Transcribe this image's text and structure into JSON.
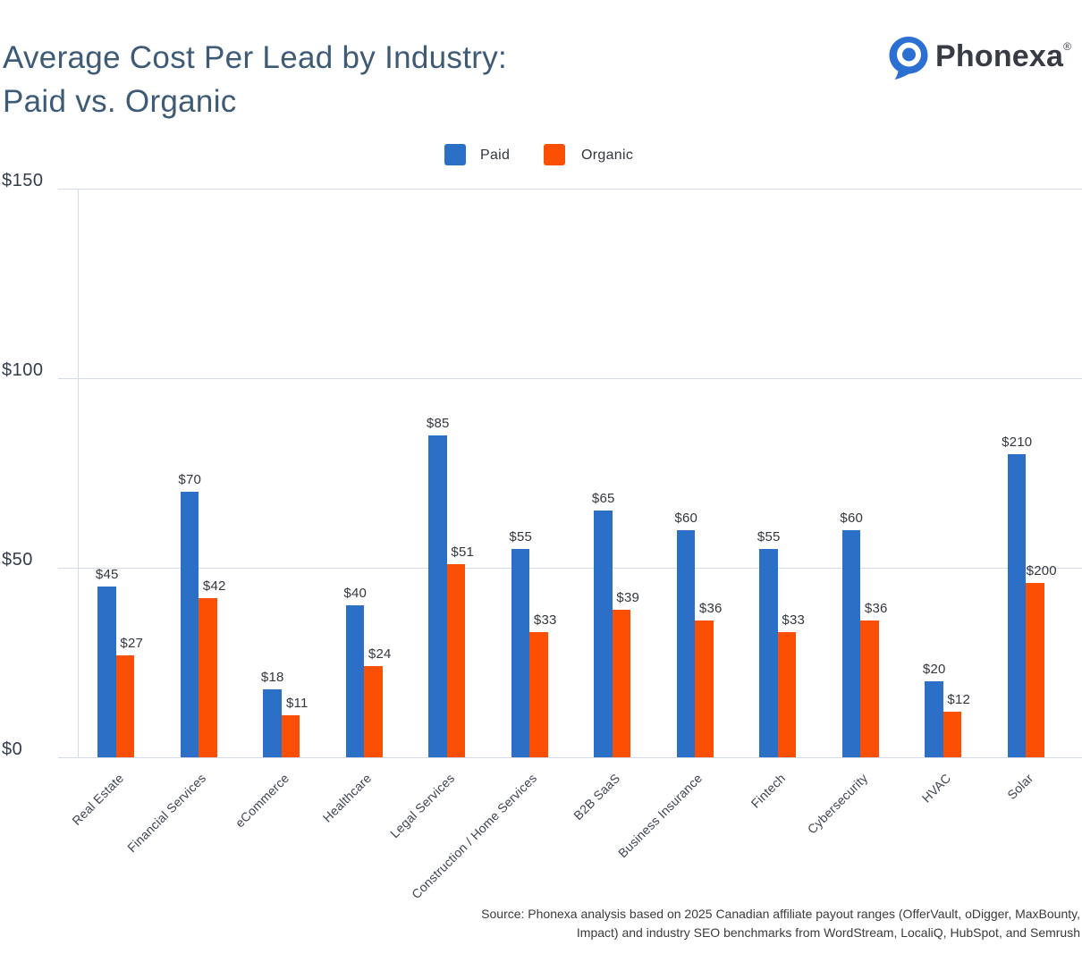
{
  "header": {
    "title_line1": "Average Cost Per Lead by Industry:",
    "title_line2": "Paid vs. Organic",
    "brand_name": "Phonexa",
    "brand_registered": "®",
    "brand_color": "#2b6fd3",
    "title_color": "#3d5a77"
  },
  "legend": {
    "items": [
      {
        "label": "Paid",
        "color": "#2b6fc6"
      },
      {
        "label": "Organic",
        "color": "#fb4f04"
      }
    ],
    "position": "top"
  },
  "chart_data": {
    "type": "bar",
    "title": "Average Cost Per Lead by Industry: Paid vs. Organic",
    "categories": [
      "Real Estate",
      "Financial Services",
      "eCommerce",
      "Healthcare",
      "Legal Services",
      "Construction / Home Services",
      "B2B SaaS",
      "Business Insurance",
      "Fintech",
      "Cybersecurity",
      "HVAC",
      "Solar"
    ],
    "series": [
      {
        "name": "Paid",
        "color": "#2b6fc6",
        "labels": [
          "$45",
          "$70",
          "$18",
          "$40",
          "$85",
          "$55",
          "$65",
          "$60",
          "$55",
          "$60",
          "$20",
          "$210"
        ],
        "values": [
          45,
          70,
          18,
          40,
          85,
          55,
          65,
          60,
          55,
          60,
          20,
          210
        ],
        "display_values": [
          45,
          70,
          18,
          40,
          85,
          55,
          65,
          60,
          55,
          60,
          20,
          80
        ]
      },
      {
        "name": "Organic",
        "color": "#fb4f04",
        "labels": [
          "$27",
          "$42",
          "$11",
          "$24",
          "$51",
          "$33",
          "$39",
          "$36",
          "$33",
          "$36",
          "$12",
          "$200"
        ],
        "values": [
          27,
          42,
          11,
          24,
          51,
          33,
          39,
          36,
          33,
          36,
          12,
          200
        ],
        "display_values": [
          27,
          42,
          11,
          24,
          51,
          33,
          39,
          36,
          33,
          36,
          12,
          46
        ]
      }
    ],
    "xlabel": "",
    "ylabel": "",
    "ylim": [
      0,
      150
    ],
    "y_ticks": [
      "$0",
      "$50",
      "$100",
      "$150"
    ],
    "y_tick_values": [
      0,
      50,
      100,
      150
    ],
    "grid": "horizontal",
    "gridline_color": "#d5dae8",
    "legend_position": "top",
    "note": "Solar bars are drawn truncated relative to their $210/$200 labels"
  },
  "footer": {
    "source_line1": "Source: Phonexa analysis based on 2025 Canadian affiliate payout ranges (OfferVault, oDigger, MaxBounty,",
    "source_line2": "Impact) and industry SEO benchmarks from WordStream, LocaliQ, HubSpot, and Semrush"
  }
}
